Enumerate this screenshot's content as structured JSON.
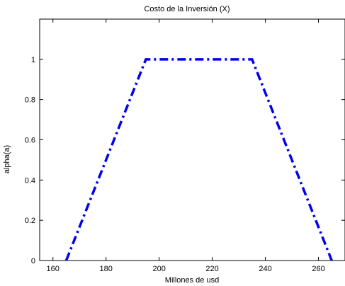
{
  "chart_data": {
    "type": "line",
    "title": "Costo de la Inversión (X)",
    "xlabel": "Millones de usd",
    "ylabel": "alpha(a)",
    "xlim": [
      155,
      270
    ],
    "ylim": [
      0,
      1.2
    ],
    "grid": false,
    "x_ticks": [
      160,
      180,
      200,
      220,
      240,
      260
    ],
    "x_tick_labels": [
      "160",
      "180",
      "200",
      "220",
      "240",
      "260"
    ],
    "y_ticks": [
      0,
      0.2,
      0.4,
      0.6,
      0.8,
      1
    ],
    "y_tick_labels": [
      "0",
      "0.2",
      "0.4",
      "0.6",
      "0.8",
      "1"
    ],
    "series": [
      {
        "color": "#0000ee",
        "line_style": "dash-dot",
        "x": [
          165,
          195,
          235,
          265
        ],
        "y": [
          0,
          1,
          1,
          0
        ]
      }
    ]
  }
}
